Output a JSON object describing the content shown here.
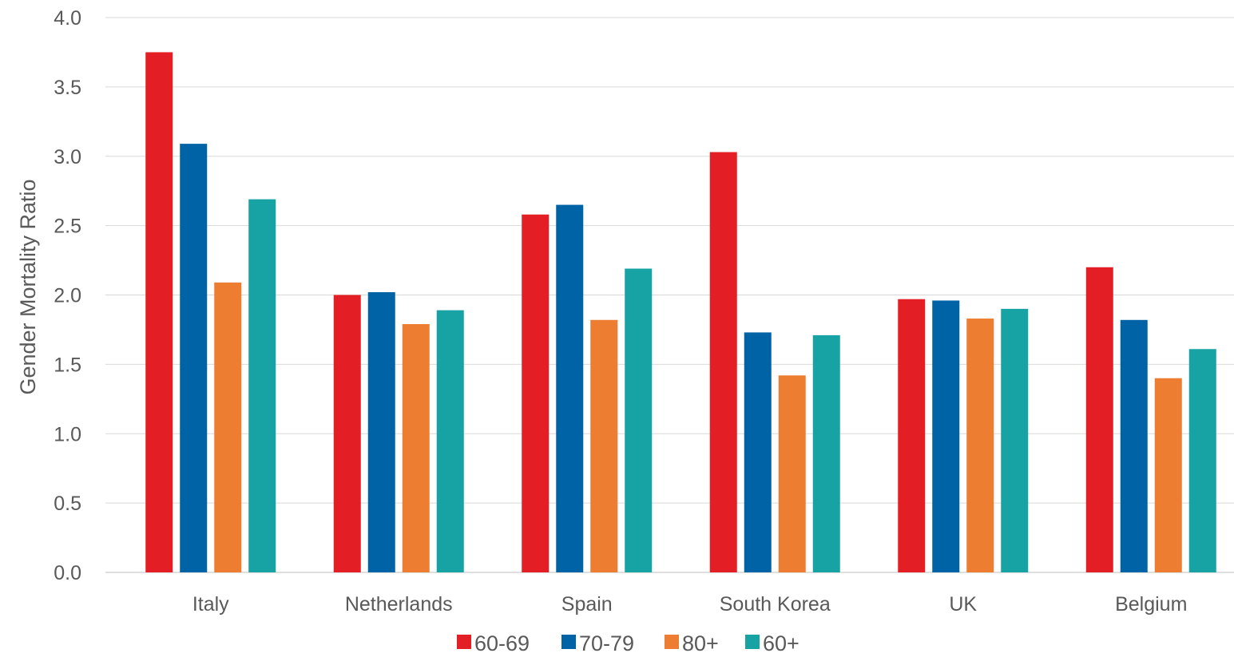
{
  "chart_data": {
    "type": "bar",
    "title": "",
    "xlabel": "",
    "ylabel": "Gender Mortality Ratio",
    "ylim": [
      0,
      4.0
    ],
    "yticks": [
      "0.0",
      "0.5",
      "1.0",
      "1.5",
      "2.0",
      "2.5",
      "3.0",
      "3.5",
      "4.0"
    ],
    "grid": true,
    "legend_position": "bottom",
    "categories": [
      "Italy",
      "Netherlands",
      "Spain",
      "South Korea",
      "UK",
      "Belgium"
    ],
    "series": [
      {
        "name": "60-69",
        "color": "#e31e24",
        "values": [
          3.75,
          2.0,
          2.58,
          3.03,
          1.97,
          2.2
        ]
      },
      {
        "name": "70-79",
        "color": "#0063a6",
        "values": [
          3.09,
          2.02,
          2.65,
          1.73,
          1.96,
          1.82
        ]
      },
      {
        "name": "80+",
        "color": "#ed7d31",
        "values": [
          2.09,
          1.79,
          1.82,
          1.42,
          1.83,
          1.4
        ]
      },
      {
        "name": "60+",
        "color": "#17a2a4",
        "values": [
          2.69,
          1.89,
          2.19,
          1.71,
          1.9,
          1.61
        ]
      }
    ]
  }
}
